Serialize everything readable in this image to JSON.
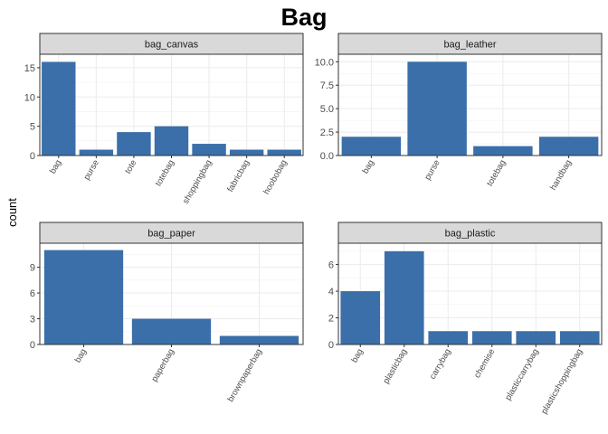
{
  "chart_data": {
    "type": "bar",
    "title": "Bag",
    "ylabel": "count",
    "xlabel": "",
    "bar_color": "#3a6faa",
    "strip_color": "#d9d9d9",
    "facets": [
      {
        "name": "bag_canvas",
        "categories": [
          "bag",
          "purse",
          "tote",
          "totebag",
          "shoppingbag",
          "fabricbag",
          "hoobobag"
        ],
        "values": [
          16,
          1,
          4,
          5,
          2,
          1,
          1
        ],
        "ylim": [
          0,
          17.3
        ],
        "yticks": [
          0,
          5,
          10,
          15
        ],
        "ytick_labels": [
          "0",
          "5",
          "10",
          "15"
        ]
      },
      {
        "name": "bag_leather",
        "categories": [
          "bag",
          "purse",
          "totebag",
          "handbag"
        ],
        "values": [
          2,
          10,
          1,
          2
        ],
        "ylim": [
          0,
          10.8
        ],
        "yticks": [
          0,
          2.5,
          5,
          7.5,
          10
        ],
        "ytick_labels": [
          "0.0",
          "2.5",
          "5.0",
          "7.5",
          "10.0"
        ]
      },
      {
        "name": "bag_paper",
        "categories": [
          "bag",
          "paperbag",
          "brownpaperbag"
        ],
        "values": [
          11,
          3,
          1
        ],
        "ylim": [
          0,
          11.8
        ],
        "yticks": [
          0,
          3,
          6,
          9
        ],
        "ytick_labels": [
          "0",
          "3",
          "6",
          "9"
        ]
      },
      {
        "name": "bag_plastic",
        "categories": [
          "bag",
          "plasticbag",
          "carrybag",
          "chemise",
          "plasticcarrybag",
          "plasticshoppingbag"
        ],
        "values": [
          4,
          7,
          1,
          1,
          1,
          1
        ],
        "ylim": [
          0,
          7.6
        ],
        "yticks": [
          0,
          2,
          4,
          6
        ],
        "ytick_labels": [
          "0",
          "2",
          "4",
          "6"
        ]
      }
    ]
  }
}
